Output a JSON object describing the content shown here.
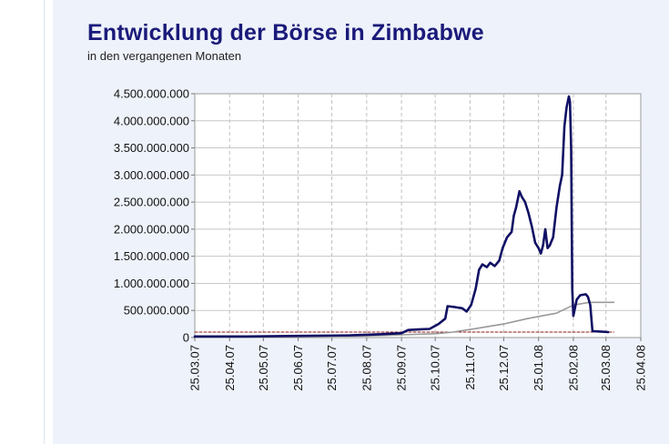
{
  "chart_data": {
    "type": "line",
    "title": "Entwicklung der Börse in Zimbabwe",
    "subtitle": "in den vergangenen Monaten",
    "xlabel": "",
    "ylabel": "",
    "ylim": [
      0,
      4500000000
    ],
    "xlim": [
      "2007-03-25",
      "2008-04-25"
    ],
    "grid": true,
    "legend": "none",
    "y_ticks": [
      {
        "value": 0,
        "label": "0"
      },
      {
        "value": 500000000,
        "label": "500.000.000"
      },
      {
        "value": 1000000000,
        "label": "1.000.000.000"
      },
      {
        "value": 1500000000,
        "label": "1.500.000.000"
      },
      {
        "value": 2000000000,
        "label": "2.000.000.000"
      },
      {
        "value": 2500000000,
        "label": "2.500.000.000"
      },
      {
        "value": 3000000000,
        "label": "3.000.000.000"
      },
      {
        "value": 3500000000,
        "label": "3.500.000.000"
      },
      {
        "value": 4000000000,
        "label": "4.000.000.000"
      },
      {
        "value": 4500000000,
        "label": "4.500.000.000"
      }
    ],
    "x_ticks": [
      {
        "value": "2007-03-25",
        "label": "25.03.07"
      },
      {
        "value": "2007-04-25",
        "label": "25.04.07"
      },
      {
        "value": "2007-05-25",
        "label": "25.05.07"
      },
      {
        "value": "2007-06-25",
        "label": "25.06.07"
      },
      {
        "value": "2007-07-25",
        "label": "25.07.07"
      },
      {
        "value": "2007-08-25",
        "label": "25.08.07"
      },
      {
        "value": "2007-09-25",
        "label": "25.09.07"
      },
      {
        "value": "2007-10-25",
        "label": "25.10.07"
      },
      {
        "value": "2007-11-25",
        "label": "25.11.07"
      },
      {
        "value": "2007-12-25",
        "label": "25.12.07"
      },
      {
        "value": "2008-01-25",
        "label": "25.01.08"
      },
      {
        "value": "2008-02-25",
        "label": "25.02.08"
      },
      {
        "value": "2008-03-25",
        "label": "25.03.08"
      },
      {
        "value": "2008-04-25",
        "label": "25.04.08"
      }
    ],
    "series": [
      {
        "color": "#101064",
        "style": "solid",
        "points": [
          [
            "2007-03-25",
            20000000
          ],
          [
            "2007-05-10",
            20000000
          ],
          [
            "2007-06-25",
            30000000
          ],
          [
            "2007-08-10",
            40000000
          ],
          [
            "2007-09-05",
            60000000
          ],
          [
            "2007-09-25",
            80000000
          ],
          [
            "2007-10-01",
            140000000
          ],
          [
            "2007-10-10",
            150000000
          ],
          [
            "2007-10-20",
            160000000
          ],
          [
            "2007-10-28",
            250000000
          ],
          [
            "2007-11-03",
            350000000
          ],
          [
            "2007-11-05",
            580000000
          ],
          [
            "2007-11-12",
            560000000
          ],
          [
            "2007-11-18",
            540000000
          ],
          [
            "2007-11-22",
            480000000
          ],
          [
            "2007-11-26",
            600000000
          ],
          [
            "2007-11-30",
            900000000
          ],
          [
            "2007-12-03",
            1250000000
          ],
          [
            "2007-12-06",
            1350000000
          ],
          [
            "2007-12-10",
            1300000000
          ],
          [
            "2007-12-13",
            1380000000
          ],
          [
            "2007-12-17",
            1320000000
          ],
          [
            "2007-12-21",
            1420000000
          ],
          [
            "2007-12-24",
            1650000000
          ],
          [
            "2007-12-28",
            1850000000
          ],
          [
            "2008-01-01",
            1950000000
          ],
          [
            "2008-01-03",
            2250000000
          ],
          [
            "2008-01-05",
            2400000000
          ],
          [
            "2008-01-08",
            2700000000
          ],
          [
            "2008-01-10",
            2600000000
          ],
          [
            "2008-01-13",
            2500000000
          ],
          [
            "2008-01-16",
            2300000000
          ],
          [
            "2008-01-19",
            2050000000
          ],
          [
            "2008-01-22",
            1750000000
          ],
          [
            "2008-01-25",
            1650000000
          ],
          [
            "2008-01-27",
            1550000000
          ],
          [
            "2008-01-29",
            1700000000
          ],
          [
            "2008-01-31",
            2000000000
          ],
          [
            "2008-02-02",
            1650000000
          ],
          [
            "2008-02-04",
            1700000000
          ],
          [
            "2008-02-07",
            1850000000
          ],
          [
            "2008-02-10",
            2400000000
          ],
          [
            "2008-02-13",
            2800000000
          ],
          [
            "2008-02-15",
            3000000000
          ],
          [
            "2008-02-17",
            3900000000
          ],
          [
            "2008-02-19",
            4250000000
          ],
          [
            "2008-02-21",
            4450000000
          ],
          [
            "2008-02-22",
            4350000000
          ],
          [
            "2008-02-23",
            3500000000
          ],
          [
            "2008-02-24",
            900000000
          ],
          [
            "2008-02-25",
            400000000
          ],
          [
            "2008-02-28",
            700000000
          ],
          [
            "2008-03-02",
            780000000
          ],
          [
            "2008-03-07",
            800000000
          ],
          [
            "2008-03-09",
            750000000
          ],
          [
            "2008-03-11",
            600000000
          ],
          [
            "2008-03-13",
            120000000
          ],
          [
            "2008-03-20",
            110000000
          ],
          [
            "2008-03-27",
            100000000
          ]
        ]
      },
      {
        "color": "#999999",
        "style": "solid",
        "points": [
          [
            "2007-03-25",
            20000000
          ],
          [
            "2007-08-25",
            30000000
          ],
          [
            "2007-09-25",
            50000000
          ],
          [
            "2007-10-25",
            70000000
          ],
          [
            "2007-11-10",
            100000000
          ],
          [
            "2007-12-01",
            170000000
          ],
          [
            "2007-12-25",
            250000000
          ],
          [
            "2008-01-15",
            350000000
          ],
          [
            "2008-02-10",
            450000000
          ],
          [
            "2008-02-25",
            600000000
          ],
          [
            "2008-03-10",
            650000000
          ],
          [
            "2008-04-01",
            650000000
          ]
        ]
      },
      {
        "color": "#8b1a1a",
        "style": "dashed",
        "points": [
          [
            "2007-03-25",
            100000000
          ],
          [
            "2008-04-01",
            100000000
          ]
        ]
      }
    ]
  }
}
